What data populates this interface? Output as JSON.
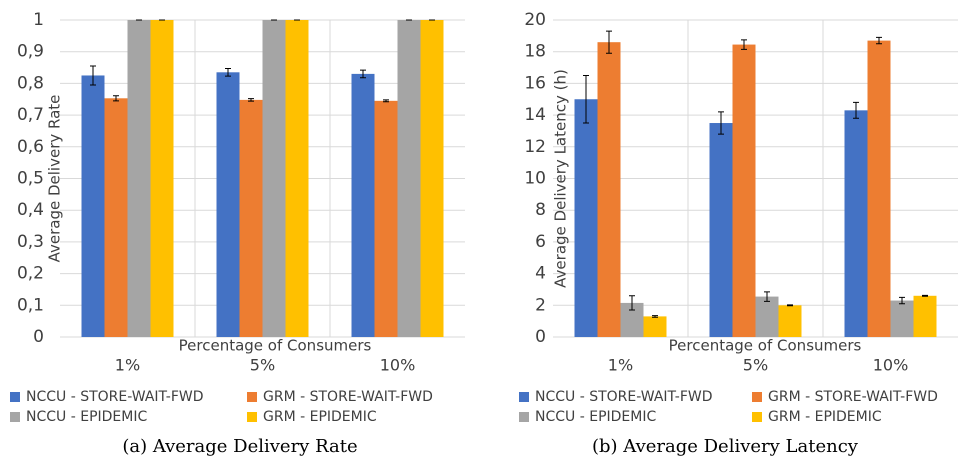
{
  "chart_data": [
    {
      "type": "bar",
      "caption": "(a) Average Delivery Rate",
      "ylabel": "Average Delivery Rate",
      "xlabel": "Percentage of Consumers",
      "categories": [
        "1%",
        "5%",
        "10%"
      ],
      "series": [
        {
          "name": "NCCU - STORE-WAIT-FWD",
          "color": "#4472c4",
          "values": [
            0.825,
            0.835,
            0.83
          ],
          "errors": [
            0.03,
            0.012,
            0.012
          ]
        },
        {
          "name": "GRM - STORE-WAIT-FWD",
          "color": "#ed7d31",
          "values": [
            0.753,
            0.748,
            0.745
          ],
          "errors": [
            0.008,
            0.004,
            0.003
          ]
        },
        {
          "name": "NCCU - EPIDEMIC",
          "color": "#a5a5a5",
          "values": [
            1,
            1,
            1
          ],
          "errors": [
            0,
            0,
            0
          ]
        },
        {
          "name": "GRM - EPIDEMIC",
          "color": "#ffc000",
          "values": [
            1,
            1,
            1
          ],
          "errors": [
            0,
            0,
            0
          ]
        }
      ],
      "ylim": [
        0,
        1
      ],
      "yticks": [
        0,
        {
          "value": 0.1,
          "label": "0,1"
        },
        {
          "value": 0.2,
          "label": "0,2"
        },
        {
          "value": 0.3,
          "label": "0,3"
        },
        {
          "value": 0.4,
          "label": "0,4"
        },
        {
          "value": 0.5,
          "label": "0,5"
        },
        {
          "value": 0.6,
          "label": "0,6"
        },
        {
          "value": 0.7,
          "label": "0,7"
        },
        {
          "value": 0.8,
          "label": "0,8"
        },
        {
          "value": 0.9,
          "label": "0,9"
        },
        1
      ],
      "grid": true
    },
    {
      "type": "bar",
      "caption": "(b) Average Delivery Latency",
      "ylabel": "Average Delivery Latency (h)",
      "xlabel": "Percentage of Consumers",
      "categories": [
        "1%",
        "5%",
        "10%"
      ],
      "series": [
        {
          "name": "NCCU - STORE-WAIT-FWD",
          "color": "#4472c4",
          "values": [
            15,
            13.5,
            14.3
          ],
          "errors": [
            1.5,
            0.7,
            0.5
          ]
        },
        {
          "name": "GRM - STORE-WAIT-FWD",
          "color": "#ed7d31",
          "values": [
            18.6,
            18.45,
            18.7
          ],
          "errors": [
            0.7,
            0.3,
            0.2
          ]
        },
        {
          "name": "NCCU - EPIDEMIC",
          "color": "#a5a5a5",
          "values": [
            2.15,
            2.55,
            2.3
          ],
          "errors": [
            0.45,
            0.3,
            0.2
          ]
        },
        {
          "name": "GRM - EPIDEMIC",
          "color": "#ffc000",
          "values": [
            1.3,
            2.0,
            2.6
          ],
          "errors": [
            0.05,
            0.03,
            0.03
          ]
        }
      ],
      "ylim": [
        0,
        20
      ],
      "yticks": [
        0,
        2,
        4,
        6,
        8,
        10,
        12,
        14,
        16,
        18,
        20
      ],
      "grid": true
    }
  ]
}
